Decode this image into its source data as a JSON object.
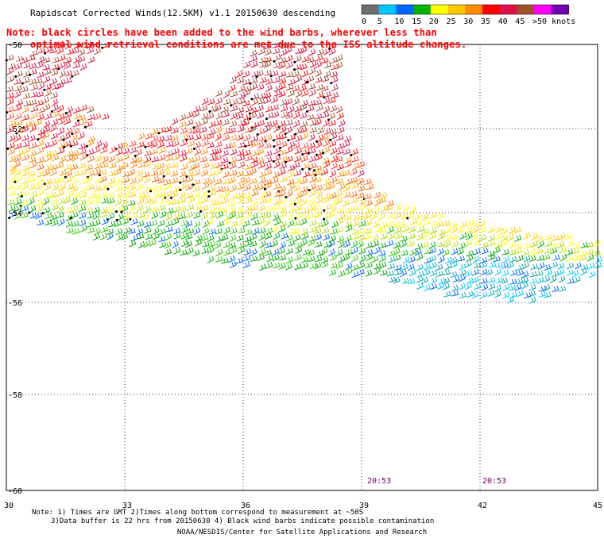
{
  "title": "Rapidscat Corrected Winds(12.5KM) v1.1 20150630 descending",
  "note": {
    "line1": "Note: black circles have been added to the wind barbs, wherever less than",
    "line2": "optimal wind retrieval conditions are met due to the ISS altitude changes."
  },
  "legend": {
    "labels": [
      "0",
      "5",
      "10",
      "15",
      "20",
      "25",
      "30",
      "35",
      "40",
      "45",
      ">50 knots"
    ],
    "colors": [
      "#6e6e6e",
      "#00c8ff",
      "#0064ff",
      "#00b400",
      "#ffff00",
      "#ffc800",
      "#ff8c00",
      "#ff0000",
      "#e01048",
      "#a05028",
      "#ff00ff",
      "#7000b0"
    ]
  },
  "axes": {
    "lon_ticks": [
      "30",
      "33",
      "36",
      "39",
      "42",
      "45"
    ],
    "lat_ticks": [
      "-50",
      "-52",
      "-54",
      "-56",
      "-58",
      "-60"
    ]
  },
  "time_labels": [
    "20:53",
    "20:53"
  ],
  "footer": {
    "line1": "Note: 1) Times are GMT 2)Times along bottom correspond to measurement at ~50S",
    "line2": "3)Data buffer is 22 hrs from 20150630 4) Black wind barbs indicate possible contamination",
    "line3": "NOAA/NESDIS/Center for Satellite Applications and Research"
  }
}
